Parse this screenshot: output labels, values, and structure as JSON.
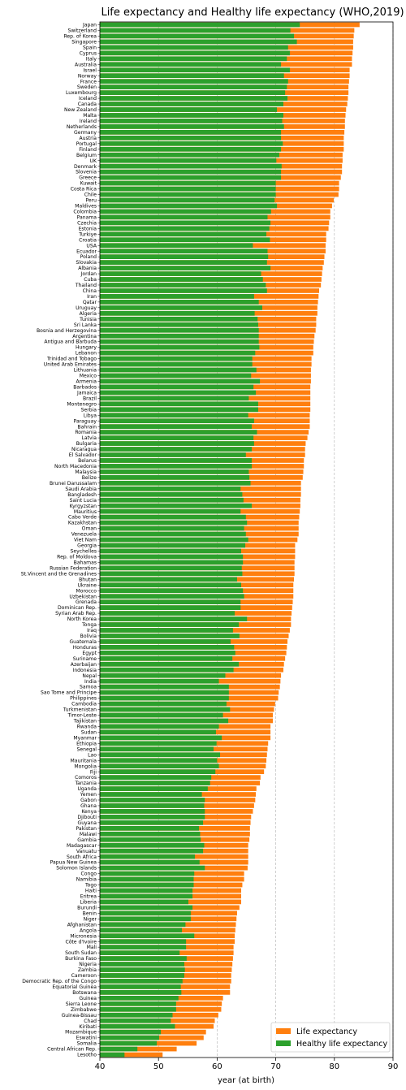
{
  "chart_data": {
    "type": "bar",
    "orientation": "horizontal",
    "title": "Life expectancy and Healthy life expectancy (WHO,2019)",
    "xlabel": "year (at birth)",
    "xlim": [
      40,
      90
    ],
    "xticks": [
      "40",
      "50",
      "60",
      "70",
      "80",
      "90"
    ],
    "grid": "x, dashed",
    "legend_position": "bottom-right",
    "series_order": [
      "Life expectancy",
      "Healthy life expectancy"
    ],
    "colors": {
      "Life expectancy": "#ff7f0e",
      "Healthy life expectancy": "#2ca02c"
    },
    "rows": [
      [
        "Japan",
        84.3,
        74.1
      ],
      [
        "Switzerland",
        83.4,
        72.5
      ],
      [
        "Rep. of Korea",
        83.3,
        73.1
      ],
      [
        "Singapore",
        83.2,
        73.6
      ],
      [
        "Spain",
        83.2,
        72.1
      ],
      [
        "Cyprus",
        83.1,
        72.4
      ],
      [
        "Italy",
        83.0,
        71.9
      ],
      [
        "Australia",
        83.0,
        70.9
      ],
      [
        "Israel",
        82.6,
        72.4
      ],
      [
        "Norway",
        82.6,
        71.4
      ],
      [
        "France",
        82.5,
        72.1
      ],
      [
        "Sweden",
        82.4,
        71.9
      ],
      [
        "Luxembourg",
        82.4,
        71.6
      ],
      [
        "Iceland",
        82.3,
        72.0
      ],
      [
        "Canada",
        82.2,
        71.3
      ],
      [
        "New Zealand",
        82.0,
        70.2
      ],
      [
        "Malta",
        81.9,
        71.3
      ],
      [
        "Ireland",
        81.8,
        71.1
      ],
      [
        "Netherlands",
        81.8,
        71.4
      ],
      [
        "Germany",
        81.7,
        70.9
      ],
      [
        "Austria",
        81.6,
        70.9
      ],
      [
        "Portugal",
        81.6,
        71.2
      ],
      [
        "Finland",
        81.6,
        70.9
      ],
      [
        "Belgium",
        81.4,
        70.6
      ],
      [
        "UK",
        81.4,
        70.1
      ],
      [
        "Denmark",
        81.3,
        71.0
      ],
      [
        "Slovenia",
        81.3,
        70.9
      ],
      [
        "Greece",
        81.1,
        70.9
      ],
      [
        "Kuwait",
        80.8,
        70.0
      ],
      [
        "Costa Rica",
        80.8,
        70.0
      ],
      [
        "Chile",
        80.7,
        70.0
      ],
      [
        "Peru",
        79.9,
        69.8
      ],
      [
        "Maldives",
        79.6,
        70.2
      ],
      [
        "Colombia",
        79.3,
        69.2
      ],
      [
        "Panama",
        79.3,
        68.6
      ],
      [
        "Czechia",
        79.1,
        69.1
      ],
      [
        "Estonia",
        79.0,
        68.9
      ],
      [
        "Turkiye",
        78.6,
        68.4
      ],
      [
        "Croatia",
        78.6,
        69.0
      ],
      [
        "USA",
        78.5,
        66.1
      ],
      [
        "Ecuador",
        78.5,
        68.6
      ],
      [
        "Poland",
        78.3,
        68.7
      ],
      [
        "Slovakia",
        78.2,
        68.5
      ],
      [
        "Albania",
        78.0,
        69.1
      ],
      [
        "Jordan",
        77.9,
        67.5
      ],
      [
        "Cuba",
        77.8,
        67.8
      ],
      [
        "Thailand",
        77.7,
        68.3
      ],
      [
        "China",
        77.4,
        68.5
      ],
      [
        "Iran",
        77.3,
        66.3
      ],
      [
        "Qatar",
        77.2,
        67.1
      ],
      [
        "Uruguay",
        77.1,
        67.7
      ],
      [
        "Algeria",
        77.1,
        66.4
      ],
      [
        "Tunisia",
        76.9,
        66.9
      ],
      [
        "Sri Lanka",
        76.9,
        67.0
      ],
      [
        "Bosnia and Herzegovina",
        76.8,
        67.1
      ],
      [
        "Argentina",
        76.6,
        67.1
      ],
      [
        "Antigua and Barbuda",
        76.5,
        67.1
      ],
      [
        "Hungary",
        76.4,
        67.2
      ],
      [
        "Lebanon",
        76.4,
        66.5
      ],
      [
        "Trinidad and Tobago",
        76.1,
        66.0
      ],
      [
        "United Arab Emirates",
        76.1,
        66.0
      ],
      [
        "Lithuania",
        76.0,
        66.7
      ],
      [
        "Mexico",
        76.0,
        65.8
      ],
      [
        "Armenia",
        76.0,
        67.3
      ],
      [
        "Barbados",
        75.9,
        66.2
      ],
      [
        "Jamaica",
        75.9,
        66.6
      ],
      [
        "Brazil",
        75.9,
        65.4
      ],
      [
        "Montenegro",
        75.9,
        67.0
      ],
      [
        "Serbia",
        75.9,
        67.0
      ],
      [
        "Libya",
        75.8,
        65.3
      ],
      [
        "Paraguay",
        75.8,
        66.3
      ],
      [
        "Bahrain",
        75.8,
        65.9
      ],
      [
        "Romania",
        75.6,
        66.8
      ],
      [
        "Latvia",
        75.4,
        66.2
      ],
      [
        "Bulgaria",
        75.1,
        66.3
      ],
      [
        "Nicaragua",
        75.0,
        65.9
      ],
      [
        "El Salvador",
        75.0,
        64.9
      ],
      [
        "Belarus",
        74.8,
        65.9
      ],
      [
        "North Macedonia",
        74.8,
        65.9
      ],
      [
        "Malaysia",
        74.7,
        65.4
      ],
      [
        "Belize",
        74.6,
        65.5
      ],
      [
        "Brunei Darussalam",
        74.3,
        65.7
      ],
      [
        "Saudi Arabia",
        74.3,
        64.0
      ],
      [
        "Bangladesh",
        74.3,
        64.3
      ],
      [
        "Saint Lucia",
        74.2,
        64.5
      ],
      [
        "Kyrgyzstan",
        74.2,
        65.9
      ],
      [
        "Mauritius",
        74.1,
        64.0
      ],
      [
        "Cabo Verde",
        74.0,
        64.9
      ],
      [
        "Kazakhstan",
        73.9,
        65.1
      ],
      [
        "Oman",
        73.9,
        64.6
      ],
      [
        "Venezuela",
        73.9,
        64.9
      ],
      [
        "Viet Nam",
        73.7,
        65.3
      ],
      [
        "Georgia",
        73.3,
        64.8
      ],
      [
        "Seychelles",
        73.3,
        64.1
      ],
      [
        "Rep. of Moldova",
        73.3,
        64.4
      ],
      [
        "Bahamas",
        73.2,
        64.4
      ],
      [
        "Russian Federation",
        73.2,
        64.2
      ],
      [
        "St.Vincent and the Grenadines",
        73.2,
        64.3
      ],
      [
        "Bhutan",
        73.1,
        63.4
      ],
      [
        "Ukraine",
        73.0,
        64.1
      ],
      [
        "Morocco",
        73.0,
        64.4
      ],
      [
        "Uzbekistan",
        73.0,
        64.6
      ],
      [
        "Grenada",
        72.9,
        64.0
      ],
      [
        "Dominican Rep.",
        72.8,
        64.0
      ],
      [
        "Syrian Arab Rep.",
        72.7,
        63.0
      ],
      [
        "North Korea",
        72.6,
        65.1
      ],
      [
        "Tonga",
        72.6,
        63.7
      ],
      [
        "Iraq",
        72.4,
        62.7
      ],
      [
        "Bolivia",
        72.2,
        63.8
      ],
      [
        "Guatemala",
        72.0,
        62.3
      ],
      [
        "Honduras",
        71.9,
        62.9
      ],
      [
        "Egypt",
        71.8,
        63.1
      ],
      [
        "Suriname",
        71.6,
        62.6
      ],
      [
        "Azerbaijan",
        71.4,
        63.7
      ],
      [
        "Indonesia",
        71.3,
        62.8
      ],
      [
        "Nepal",
        70.9,
        61.4
      ],
      [
        "India",
        70.8,
        60.3
      ],
      [
        "Samoa",
        70.7,
        62.0
      ],
      [
        "Sao Tome and Principe",
        70.5,
        62.0
      ],
      [
        "Philippines",
        70.4,
        62.0
      ],
      [
        "Cambodia",
        69.9,
        61.6
      ],
      [
        "Turkmenistan",
        69.7,
        62.2
      ],
      [
        "Timor-Leste",
        69.5,
        61.0
      ],
      [
        "Tajikistan",
        69.5,
        61.9
      ],
      [
        "Rwanda",
        69.1,
        60.3
      ],
      [
        "Sudan",
        69.1,
        59.8
      ],
      [
        "Myanmar",
        69.1,
        60.8
      ],
      [
        "Ethiopia",
        68.7,
        59.9
      ],
      [
        "Senegal",
        68.6,
        59.4
      ],
      [
        "Lao",
        68.5,
        60.5
      ],
      [
        "Mauritania",
        68.4,
        60.0
      ],
      [
        "Mongolia",
        68.3,
        60.3
      ],
      [
        "Fiji",
        68.0,
        59.7
      ],
      [
        "Comoros",
        67.4,
        59.0
      ],
      [
        "Tanzania",
        67.3,
        58.8
      ],
      [
        "Uganda",
        66.7,
        58.4
      ],
      [
        "Yemen",
        66.6,
        57.4
      ],
      [
        "Gabon",
        66.5,
        57.9
      ],
      [
        "Ghana",
        66.3,
        57.8
      ],
      [
        "Kenya",
        66.1,
        57.9
      ],
      [
        "Djibouti",
        65.8,
        57.9
      ],
      [
        "Guyana",
        65.7,
        57.6
      ],
      [
        "Pakistan",
        65.6,
        56.9
      ],
      [
        "Malawi",
        65.6,
        57.1
      ],
      [
        "Gambia",
        65.5,
        57.2
      ],
      [
        "Madagascar",
        65.3,
        57.8
      ],
      [
        "Vanuatu",
        65.3,
        57.6
      ],
      [
        "South Africa",
        65.3,
        56.2
      ],
      [
        "Papua New Guinea",
        65.3,
        57.0
      ],
      [
        "Solomon Islands",
        65.2,
        57.9
      ],
      [
        "Congo",
        64.6,
        56.1
      ],
      [
        "Namibia",
        64.6,
        56.0
      ],
      [
        "Togo",
        64.3,
        56.0
      ],
      [
        "Haiti",
        64.1,
        55.8
      ],
      [
        "Eritrea",
        64.1,
        55.8
      ],
      [
        "Liberia",
        64.1,
        55.1
      ],
      [
        "Burundi",
        63.8,
        55.8
      ],
      [
        "Benin",
        63.4,
        55.5
      ],
      [
        "Niger",
        63.3,
        55.5
      ],
      [
        "Afghanistan",
        63.2,
        54.6
      ],
      [
        "Angola",
        63.1,
        54.0
      ],
      [
        "Micronesia",
        63.0,
        56.1
      ],
      [
        "Côte d'Ivoire",
        63.0,
        54.7
      ],
      [
        "Mali",
        62.8,
        54.7
      ],
      [
        "South Sudan",
        62.8,
        53.6
      ],
      [
        "Burkina Faso",
        62.7,
        54.8
      ],
      [
        "Nigeria",
        62.6,
        54.4
      ],
      [
        "Zambia",
        62.5,
        54.5
      ],
      [
        "Cameroon",
        62.4,
        54.4
      ],
      [
        "Democratic Rep. of the Congo",
        62.4,
        54.1
      ],
      [
        "Equatorial Guinea",
        62.2,
        53.8
      ],
      [
        "Botswana",
        62.2,
        53.9
      ],
      [
        "Guinea",
        61.0,
        53.4
      ],
      [
        "Sierra Leone",
        60.8,
        53.0
      ],
      [
        "Zimbabwe",
        60.7,
        53.0
      ],
      [
        "Guinea-Bissau",
        60.2,
        52.4
      ],
      [
        "Chad",
        59.6,
        52.1
      ],
      [
        "Kiribati",
        59.4,
        52.8
      ],
      [
        "Mozambique",
        58.1,
        50.4
      ],
      [
        "Eswatini",
        57.7,
        50.1
      ],
      [
        "Somalia",
        56.5,
        49.7
      ],
      [
        "Central African Rep.",
        53.1,
        46.4
      ],
      [
        "Lesotho",
        50.7,
        44.2
      ]
    ]
  }
}
